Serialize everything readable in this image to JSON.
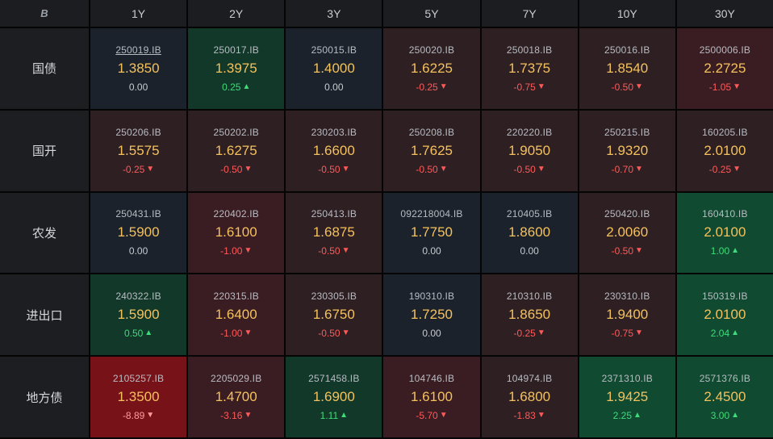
{
  "corner": {
    "glyph": "B"
  },
  "columns": [
    "1Y",
    "2Y",
    "3Y",
    "5Y",
    "7Y",
    "10Y",
    "30Y"
  ],
  "colors": {
    "rate": "#f4c15c",
    "down": "#ff5a5a",
    "up": "#3fdc7a"
  },
  "rows": [
    {
      "label": "国债",
      "cells": [
        {
          "code": "250019.IB",
          "rate": "1.3850",
          "change": "0.00",
          "dir": "zero",
          "arrow": "",
          "tone": "neutral",
          "link": true
        },
        {
          "code": "250017.IB",
          "rate": "1.3975",
          "change": "0.25",
          "dir": "pos",
          "arrow": "▲",
          "tone": "up"
        },
        {
          "code": "250015.IB",
          "rate": "1.4000",
          "change": "0.00",
          "dir": "zero",
          "arrow": "",
          "tone": "neutral"
        },
        {
          "code": "250020.IB",
          "rate": "1.6225",
          "change": "-0.25",
          "dir": "neg",
          "arrow": "▼",
          "tone": "down"
        },
        {
          "code": "250018.IB",
          "rate": "1.7375",
          "change": "-0.75",
          "dir": "neg",
          "arrow": "▼",
          "tone": "down"
        },
        {
          "code": "250016.IB",
          "rate": "1.8540",
          "change": "-0.50",
          "dir": "neg",
          "arrow": "▼",
          "tone": "down"
        },
        {
          "code": "2500006.IB",
          "rate": "2.2725",
          "change": "-1.05",
          "dir": "neg",
          "arrow": "▼",
          "tone": "down2"
        }
      ]
    },
    {
      "label": "国开",
      "cells": [
        {
          "code": "250206.IB",
          "rate": "1.5575",
          "change": "-0.25",
          "dir": "neg",
          "arrow": "▼",
          "tone": "down"
        },
        {
          "code": "250202.IB",
          "rate": "1.6275",
          "change": "-0.50",
          "dir": "neg",
          "arrow": "▼",
          "tone": "down"
        },
        {
          "code": "230203.IB",
          "rate": "1.6600",
          "change": "-0.50",
          "dir": "neg",
          "arrow": "▼",
          "tone": "down"
        },
        {
          "code": "250208.IB",
          "rate": "1.7625",
          "change": "-0.50",
          "dir": "neg",
          "arrow": "▼",
          "tone": "down"
        },
        {
          "code": "220220.IB",
          "rate": "1.9050",
          "change": "-0.50",
          "dir": "neg",
          "arrow": "▼",
          "tone": "down"
        },
        {
          "code": "250215.IB",
          "rate": "1.9320",
          "change": "-0.70",
          "dir": "neg",
          "arrow": "▼",
          "tone": "down"
        },
        {
          "code": "160205.IB",
          "rate": "2.0100",
          "change": "-0.25",
          "dir": "neg",
          "arrow": "▼",
          "tone": "down"
        }
      ]
    },
    {
      "label": "农发",
      "cells": [
        {
          "code": "250431.IB",
          "rate": "1.5900",
          "change": "0.00",
          "dir": "zero",
          "arrow": "",
          "tone": "neutral"
        },
        {
          "code": "220402.IB",
          "rate": "1.6100",
          "change": "-1.00",
          "dir": "neg",
          "arrow": "▼",
          "tone": "down2"
        },
        {
          "code": "250413.IB",
          "rate": "1.6875",
          "change": "-0.50",
          "dir": "neg",
          "arrow": "▼",
          "tone": "down"
        },
        {
          "code": "092218004.IB",
          "rate": "1.7750",
          "change": "0.00",
          "dir": "zero",
          "arrow": "",
          "tone": "neutral"
        },
        {
          "code": "210405.IB",
          "rate": "1.8600",
          "change": "0.00",
          "dir": "zero",
          "arrow": "",
          "tone": "neutral"
        },
        {
          "code": "250420.IB",
          "rate": "2.0060",
          "change": "-0.50",
          "dir": "neg",
          "arrow": "▼",
          "tone": "down"
        },
        {
          "code": "160410.IB",
          "rate": "2.0100",
          "change": "1.00",
          "dir": "pos",
          "arrow": "▲",
          "tone": "up2"
        }
      ]
    },
    {
      "label": "进出口",
      "cells": [
        {
          "code": "240322.IB",
          "rate": "1.5900",
          "change": "0.50",
          "dir": "pos",
          "arrow": "▲",
          "tone": "up"
        },
        {
          "code": "220315.IB",
          "rate": "1.6400",
          "change": "-1.00",
          "dir": "neg",
          "arrow": "▼",
          "tone": "down2"
        },
        {
          "code": "230305.IB",
          "rate": "1.6750",
          "change": "-0.50",
          "dir": "neg",
          "arrow": "▼",
          "tone": "down"
        },
        {
          "code": "190310.IB",
          "rate": "1.7250",
          "change": "0.00",
          "dir": "zero",
          "arrow": "",
          "tone": "neutral"
        },
        {
          "code": "210310.IB",
          "rate": "1.8650",
          "change": "-0.25",
          "dir": "neg",
          "arrow": "▼",
          "tone": "down"
        },
        {
          "code": "230310.IB",
          "rate": "1.9400",
          "change": "-0.75",
          "dir": "neg",
          "arrow": "▼",
          "tone": "down"
        },
        {
          "code": "150319.IB",
          "rate": "2.0100",
          "change": "2.04",
          "dir": "pos",
          "arrow": "▲",
          "tone": "up2"
        }
      ]
    },
    {
      "label": "地方债",
      "cells": [
        {
          "code": "2105257.IB",
          "rate": "1.3500",
          "change": "-8.89",
          "dir": "neg",
          "arrow": "▼",
          "tone": "down3"
        },
        {
          "code": "2205029.IB",
          "rate": "1.4700",
          "change": "-3.16",
          "dir": "neg",
          "arrow": "▼",
          "tone": "down2"
        },
        {
          "code": "2571458.IB",
          "rate": "1.6900",
          "change": "1.11",
          "dir": "pos",
          "arrow": "▲",
          "tone": "up"
        },
        {
          "code": "104746.IB",
          "rate": "1.6100",
          "change": "-5.70",
          "dir": "neg",
          "arrow": "▼",
          "tone": "down2"
        },
        {
          "code": "104974.IB",
          "rate": "1.6800",
          "change": "-1.83",
          "dir": "neg",
          "arrow": "▼",
          "tone": "down"
        },
        {
          "code": "2371310.IB",
          "rate": "1.9425",
          "change": "2.25",
          "dir": "pos",
          "arrow": "▲",
          "tone": "up2"
        },
        {
          "code": "2571376.IB",
          "rate": "2.4500",
          "change": "3.00",
          "dir": "pos",
          "arrow": "▲",
          "tone": "up2"
        }
      ]
    }
  ]
}
